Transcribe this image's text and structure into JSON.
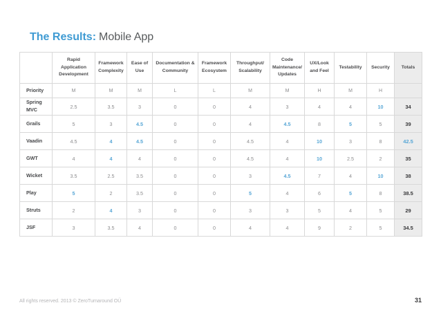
{
  "slide": {
    "title_accent": "The Results:",
    "title_rest": "Mobile App",
    "footer_copyright": "All rights reserved. 2013 © ZeroTurnaround OÜ",
    "page_number": "31"
  },
  "colors": {
    "accent_blue": "#3f9bd3",
    "highlight_blue": "#58a7d6",
    "header_text": "#4b4b4d",
    "cell_text": "#8c8c8e",
    "label_text": "#47484a",
    "border": "#d8d8d8",
    "totals_bg": "#ececec",
    "totals_text": "#39393b",
    "footer_text": "#b4b4b6",
    "title_rest_gray": "#56595b"
  },
  "table": {
    "header": [
      "",
      "Rapid Application Development",
      "Framework Complexity",
      "Ease of Use",
      "Documentation & Community",
      "Framework Ecosystem",
      "Throughput/ Scalability",
      "Code Maintenance/ Updates",
      "UX/Look and Feel",
      "Testability",
      "Security",
      "Totals"
    ],
    "priority": {
      "label": "Priority",
      "values": [
        "M",
        "M",
        "M",
        "L",
        "L",
        "M",
        "M",
        "H",
        "M",
        "H"
      ]
    },
    "frameworks": [
      {
        "name": "Spring MVC",
        "scores": [
          "2.5",
          "3.5",
          "3",
          "0",
          "0",
          "4",
          "3",
          "4",
          "4",
          "10"
        ],
        "highlighted": [
          9
        ],
        "total": "34",
        "total_highlighted": false
      },
      {
        "name": "Grails",
        "scores": [
          "5",
          "3",
          "4.5",
          "0",
          "0",
          "4",
          "4.5",
          "8",
          "5",
          "5"
        ],
        "highlighted": [
          2,
          6,
          8
        ],
        "total": "39",
        "total_highlighted": false
      },
      {
        "name": "Vaadin",
        "scores": [
          "4.5",
          "4",
          "4.5",
          "0",
          "0",
          "4.5",
          "4",
          "10",
          "3",
          "8"
        ],
        "highlighted": [
          1,
          2,
          7
        ],
        "total": "42.5",
        "total_highlighted": true
      },
      {
        "name": "GWT",
        "scores": [
          "4",
          "4",
          "4",
          "0",
          "0",
          "4.5",
          "4",
          "10",
          "2.5",
          "2"
        ],
        "highlighted": [
          1,
          7
        ],
        "total": "35",
        "total_highlighted": false
      },
      {
        "name": "Wicket",
        "scores": [
          "3.5",
          "2.5",
          "3.5",
          "0",
          "0",
          "3",
          "4.5",
          "7",
          "4",
          "10"
        ],
        "highlighted": [
          6,
          9
        ],
        "total": "38",
        "total_highlighted": false
      },
      {
        "name": "Play",
        "scores": [
          "5",
          "2",
          "3.5",
          "0",
          "0",
          "5",
          "4",
          "6",
          "5",
          "8"
        ],
        "highlighted": [
          0,
          5,
          8
        ],
        "total": "38.5",
        "total_highlighted": false
      },
      {
        "name": "Struts",
        "scores": [
          "2",
          "4",
          "3",
          "0",
          "0",
          "3",
          "3",
          "5",
          "4",
          "5"
        ],
        "highlighted": [
          1
        ],
        "total": "29",
        "total_highlighted": false
      },
      {
        "name": "JSF",
        "scores": [
          "3",
          "3.5",
          "4",
          "0",
          "0",
          "4",
          "4",
          "9",
          "2",
          "5"
        ],
        "highlighted": [],
        "total": "34.5",
        "total_highlighted": false
      }
    ]
  }
}
